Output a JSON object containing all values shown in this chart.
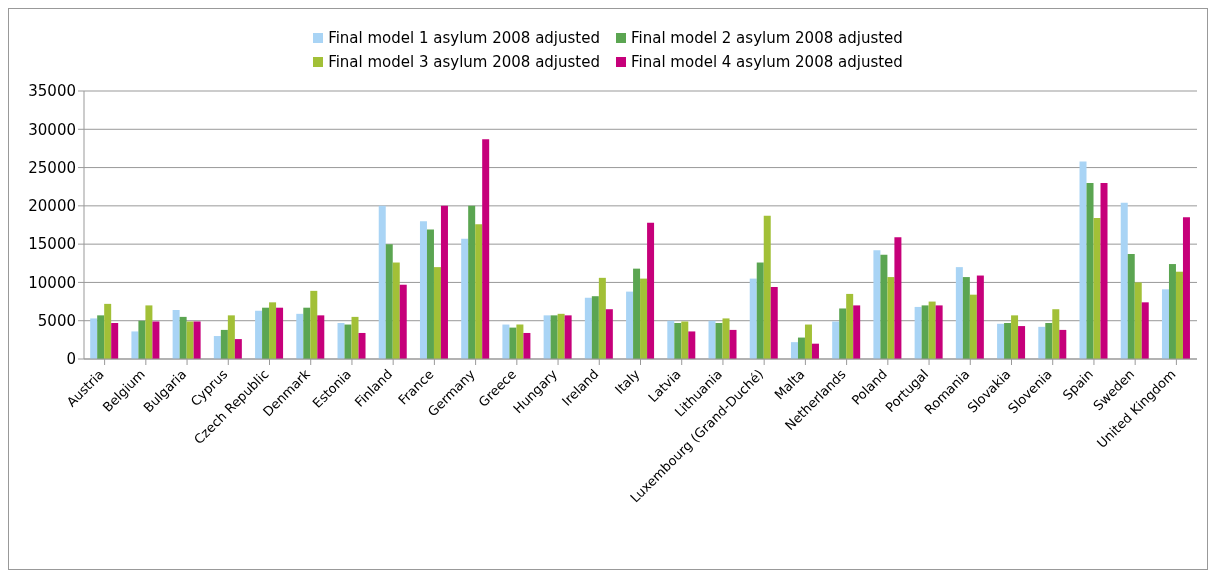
{
  "chart_data": {
    "type": "bar",
    "categories": [
      "Austria",
      "Belgium",
      "Bulgaria",
      "Cyprus",
      "Czech Republic",
      "Denmark",
      "Estonia",
      "Finland",
      "France",
      "Germany",
      "Greece",
      "Hungary",
      "Ireland",
      "Italy",
      "Latvia",
      "Lithuania",
      "Luxembourg (Grand-Duché)",
      "Malta",
      "Netherlands",
      "Poland",
      "Portugal",
      "Romania",
      "Slovakia",
      "Slovenia",
      "Spain",
      "Sweden",
      "United Kingdom"
    ],
    "series": [
      {
        "name": "Final model 1 asylum 2008 adjusted",
        "color": "#a9d4f5",
        "values": [
          5300,
          3600,
          6400,
          3000,
          6300,
          5900,
          4700,
          20000,
          18000,
          15700,
          4500,
          5700,
          8000,
          8800,
          5000,
          5000,
          10500,
          2200,
          4900,
          14200,
          6800,
          12000,
          4600,
          4200,
          25800,
          20400,
          9100
        ]
      },
      {
        "name": "Final model 2 asylum 2008 adjusted",
        "color": "#5ba551",
        "values": [
          5700,
          5000,
          5500,
          3800,
          6700,
          6700,
          4500,
          15000,
          16900,
          20000,
          4100,
          5700,
          8200,
          11800,
          4700,
          4700,
          12600,
          2800,
          6600,
          13600,
          7000,
          10700,
          4700,
          4700,
          23000,
          13700,
          12400
        ]
      },
      {
        "name": "Final model 3 asylum 2008 adjusted",
        "color": "#a2c037",
        "values": [
          7200,
          7000,
          4900,
          5700,
          7400,
          8900,
          5500,
          12600,
          12000,
          17600,
          4500,
          5900,
          10600,
          10500,
          4900,
          5300,
          18700,
          4500,
          8500,
          10700,
          7500,
          8400,
          5700,
          6500,
          18400,
          10000,
          11400
        ]
      },
      {
        "name": "Final model 4 asylum 2008 adjusted",
        "color": "#c6007a",
        "values": [
          4700,
          4900,
          4900,
          2600,
          6700,
          5700,
          3400,
          9700,
          20000,
          28700,
          3400,
          5700,
          6500,
          17800,
          3600,
          3800,
          9400,
          2000,
          7000,
          15900,
          7000,
          10900,
          4300,
          3800,
          23000,
          7400,
          18500
        ]
      }
    ],
    "ylim": [
      0,
      35000
    ],
    "yticks": [
      0,
      5000,
      10000,
      15000,
      20000,
      25000,
      30000,
      35000
    ],
    "grid": "y",
    "legend": "top"
  }
}
